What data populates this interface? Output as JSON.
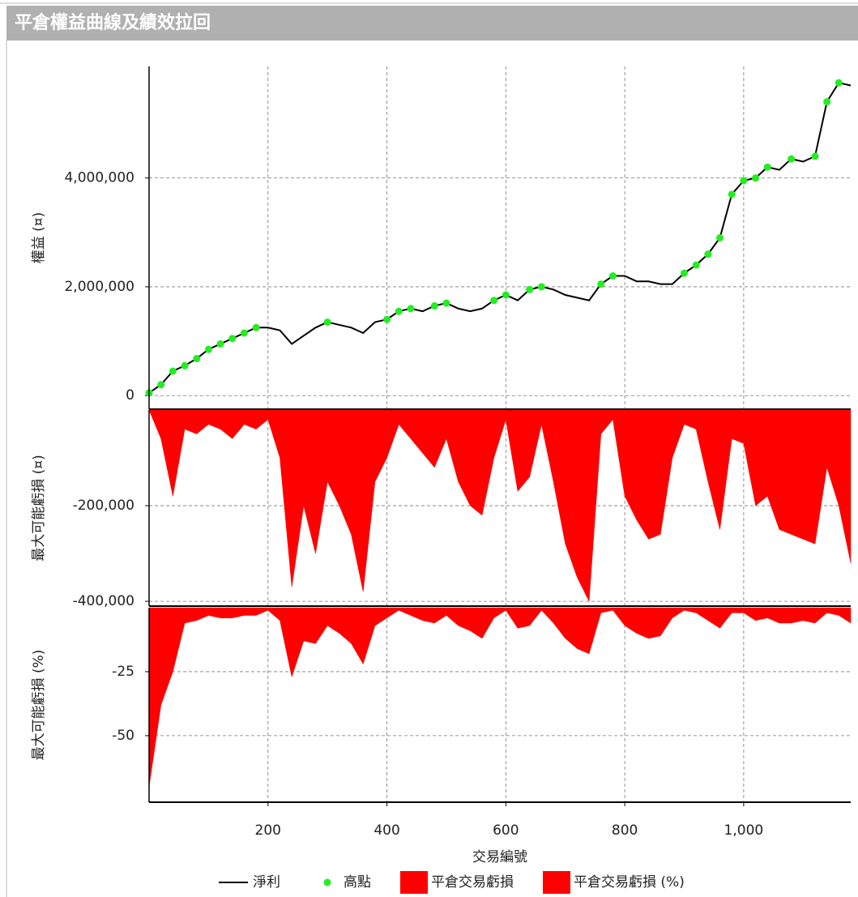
{
  "chart_data": [
    {
      "type": "line",
      "title": "平倉權益曲線及績效拉回",
      "y_label": "權益 (¤)",
      "x": [
        0,
        20,
        40,
        60,
        80,
        100,
        120,
        140,
        160,
        180,
        200,
        220,
        240,
        260,
        280,
        300,
        320,
        340,
        360,
        380,
        400,
        420,
        440,
        460,
        480,
        500,
        520,
        540,
        560,
        580,
        600,
        620,
        640,
        660,
        680,
        700,
        720,
        740,
        760,
        780,
        800,
        820,
        840,
        860,
        880,
        900,
        920,
        940,
        960,
        980,
        1000,
        1020,
        1040,
        1060,
        1080,
        1100,
        1120,
        1140,
        1160,
        1180
      ],
      "xlim": [
        0,
        1180
      ],
      "xticks": [
        200,
        400,
        600,
        800,
        1000
      ],
      "ylim": [
        -250000,
        6050000
      ],
      "yticks": [
        0,
        {
          "value": 2000000,
          "label": "2,000,000"
        },
        {
          "value": 4000000,
          "label": "4,000,000"
        }
      ],
      "grid": true,
      "series": [
        {
          "name": "淨利",
          "type": "line",
          "color": "#000000",
          "values": [
            50000,
            200000,
            450000,
            550000,
            680000,
            850000,
            950000,
            1050000,
            1150000,
            1250000,
            1250000,
            1200000,
            950000,
            1100000,
            1250000,
            1350000,
            1300000,
            1250000,
            1150000,
            1350000,
            1400000,
            1550000,
            1600000,
            1550000,
            1650000,
            1700000,
            1600000,
            1550000,
            1600000,
            1750000,
            1850000,
            1750000,
            1950000,
            2000000,
            1950000,
            1850000,
            1800000,
            1750000,
            2050000,
            2200000,
            2200000,
            2100000,
            2100000,
            2050000,
            2050000,
            2250000,
            2400000,
            2600000,
            2900000,
            3700000,
            3950000,
            4000000,
            4200000,
            4150000,
            4350000,
            4300000,
            4400000,
            5400000,
            5750000,
            5700000
          ]
        },
        {
          "name": "高點",
          "type": "scatter",
          "color": "#22ee22",
          "values": [
            50000,
            200000,
            450000,
            550000,
            680000,
            850000,
            950000,
            1050000,
            1150000,
            1250000,
            null,
            null,
            null,
            null,
            null,
            1350000,
            null,
            null,
            null,
            null,
            1400000,
            1550000,
            1600000,
            null,
            1650000,
            1700000,
            null,
            null,
            null,
            1750000,
            1850000,
            null,
            1950000,
            2000000,
            null,
            null,
            null,
            null,
            2050000,
            2200000,
            null,
            null,
            null,
            null,
            null,
            2250000,
            2400000,
            2600000,
            2900000,
            3700000,
            3950000,
            4000000,
            4200000,
            null,
            4350000,
            null,
            4400000,
            5400000,
            5750000,
            null
          ]
        }
      ]
    },
    {
      "type": "area",
      "y_label": "最大可能虧損 (¤)",
      "x": [
        0,
        20,
        40,
        60,
        80,
        100,
        120,
        140,
        160,
        180,
        200,
        220,
        240,
        260,
        280,
        300,
        320,
        340,
        360,
        380,
        400,
        420,
        440,
        460,
        480,
        500,
        520,
        540,
        560,
        580,
        600,
        620,
        640,
        660,
        680,
        700,
        720,
        740,
        760,
        780,
        800,
        820,
        840,
        860,
        880,
        900,
        920,
        940,
        960,
        980,
        1000,
        1020,
        1040,
        1060,
        1080,
        1100,
        1120,
        1140,
        1160,
        1180
      ],
      "xlim": [
        0,
        1180
      ],
      "xticks": [
        200,
        400,
        600,
        800,
        1000
      ],
      "ylim": [
        -410000,
        0
      ],
      "yticks": [
        {
          "value": -200000,
          "label": "-200,000"
        },
        {
          "value": -400000,
          "label": "-400,000"
        }
      ],
      "grid": true,
      "series": [
        {
          "name": "平倉交易虧損",
          "color": "#ff0000",
          "values": [
            0,
            -60000,
            -180000,
            -40000,
            -50000,
            -30000,
            -40000,
            -60000,
            -30000,
            -40000,
            -20000,
            -100000,
            -370000,
            -200000,
            -300000,
            -150000,
            -200000,
            -260000,
            -380000,
            -150000,
            -100000,
            -30000,
            -60000,
            -90000,
            -120000,
            -60000,
            -150000,
            -200000,
            -220000,
            -100000,
            -20000,
            -170000,
            -140000,
            -30000,
            -150000,
            -280000,
            -350000,
            -400000,
            -50000,
            -20000,
            -180000,
            -230000,
            -270000,
            -260000,
            -100000,
            -30000,
            -40000,
            -150000,
            -250000,
            -60000,
            -70000,
            -200000,
            -180000,
            -250000,
            -260000,
            -270000,
            -280000,
            -120000,
            -200000,
            -320000
          ]
        }
      ]
    },
    {
      "type": "area",
      "y_label": "最大可能虧損 (%)",
      "x_label": "交易編號",
      "x": [
        0,
        20,
        40,
        60,
        80,
        100,
        120,
        140,
        160,
        180,
        200,
        220,
        240,
        260,
        280,
        300,
        320,
        340,
        360,
        380,
        400,
        420,
        440,
        460,
        480,
        500,
        520,
        540,
        560,
        580,
        600,
        620,
        640,
        660,
        680,
        700,
        720,
        740,
        760,
        780,
        800,
        820,
        840,
        860,
        880,
        900,
        920,
        940,
        960,
        980,
        1000,
        1020,
        1040,
        1060,
        1080,
        1100,
        1120,
        1140,
        1160,
        1180
      ],
      "xlim": [
        0,
        1180
      ],
      "xticks": [
        200,
        400,
        600,
        800,
        {
          "value": 1000,
          "label": "1,000"
        }
      ],
      "ylim": [
        -76,
        0
      ],
      "yticks": [
        -25,
        -50
      ],
      "grid": true,
      "series": [
        {
          "name": "平倉交易虧損 (%)",
          "color": "#ff0000",
          "values": [
            -70,
            -38,
            -25,
            -6,
            -5,
            -3,
            -4,
            -4,
            -3,
            -3,
            -1,
            -5,
            -27,
            -13,
            -14,
            -7,
            -10,
            -14,
            -22,
            -7,
            -4,
            -1,
            -3,
            -5,
            -6,
            -3,
            -7,
            -9,
            -12,
            -4,
            -1,
            -8,
            -7,
            -1,
            -6,
            -12,
            -16,
            -18,
            -2,
            -1,
            -7,
            -10,
            -12,
            -11,
            -4,
            -1,
            -2,
            -5,
            -8,
            -2,
            -2,
            -5,
            -4,
            -6,
            -6,
            -5,
            -6,
            -2,
            -3,
            -6
          ]
        }
      ]
    }
  ]
}
